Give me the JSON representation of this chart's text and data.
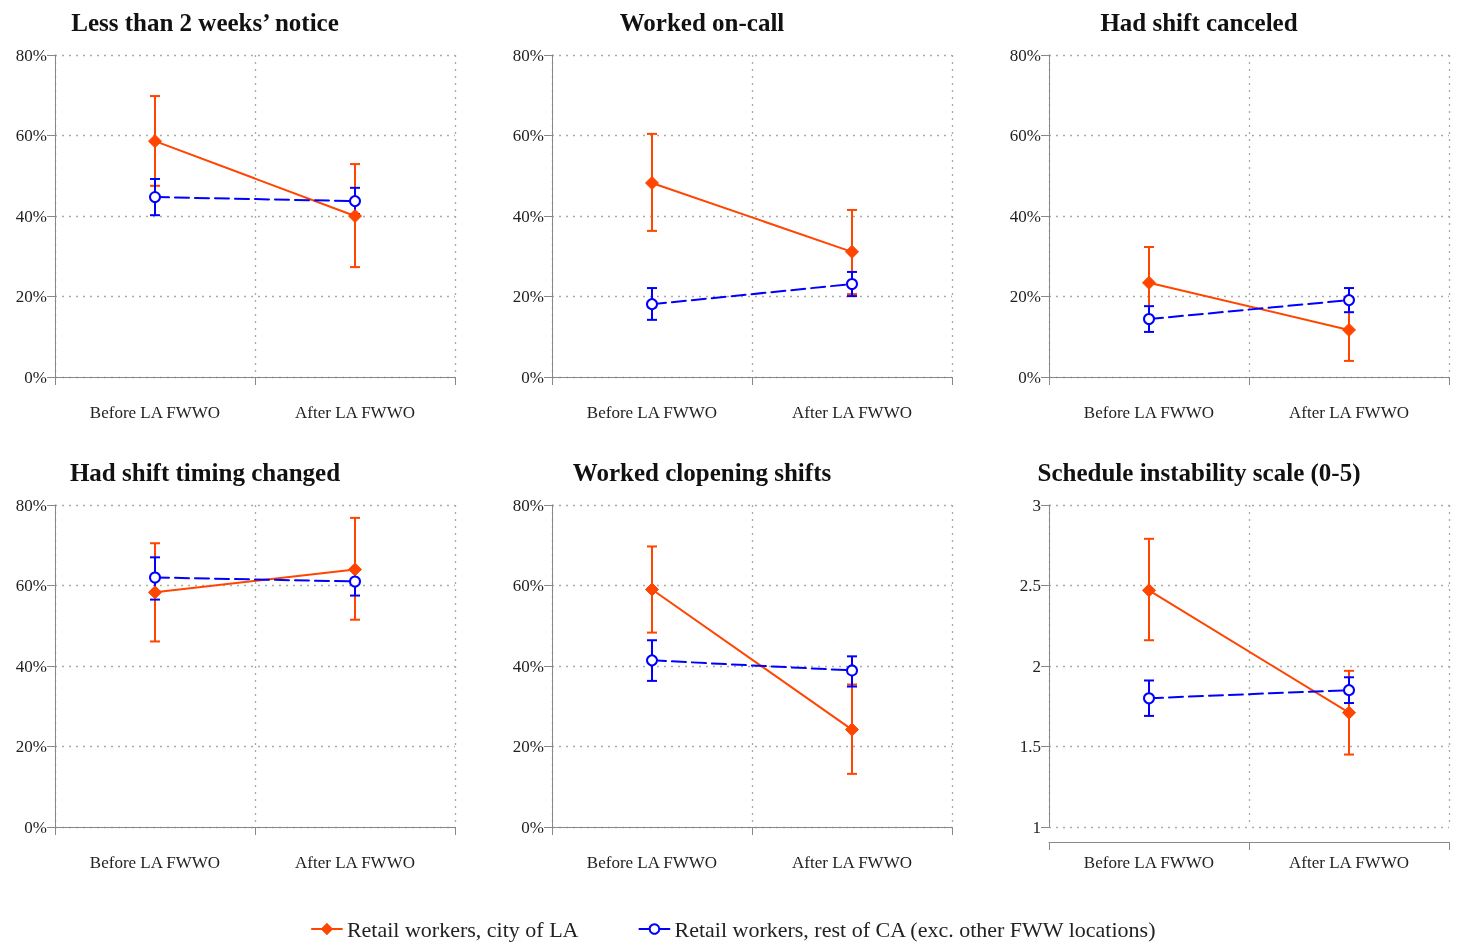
{
  "chart_data": [
    {
      "type": "line",
      "title": "Less than 2 weeks’ notice",
      "categories": [
        "Before LA FWWO",
        "After LA FWWO"
      ],
      "ylim": [
        0,
        80
      ],
      "yticks": [
        {
          "value": 0,
          "label": "0%"
        },
        {
          "value": 20,
          "label": "20%"
        },
        {
          "value": 40,
          "label": "40%"
        },
        {
          "value": 60,
          "label": "60%"
        },
        {
          "value": 80,
          "label": "80%"
        }
      ],
      "grid": true,
      "legend": "bottom",
      "series": [
        {
          "name": "Retail workers, city of LA",
          "color": "#ff4500",
          "marker": "diamond",
          "line_style": "solid",
          "values": [
            58.6,
            40
          ],
          "errors": [
            [
              47.5,
              69.8
            ],
            [
              27.3,
              52.9
            ]
          ]
        },
        {
          "name": "Retail workers, rest of CA (exc. other FWW locations)",
          "color": "#0000ff",
          "marker": "circle",
          "line_style": "dashed",
          "values": [
            44.7,
            43.7
          ],
          "errors": [
            [
              40.2,
              49.2
            ],
            [
              40.5,
              47
            ]
          ]
        }
      ]
    },
    {
      "type": "line",
      "title": "Worked on-call",
      "categories": [
        "Before LA FWWO",
        "After LA FWWO"
      ],
      "ylim": [
        0,
        80
      ],
      "yticks": [
        {
          "value": 0,
          "label": "0%"
        },
        {
          "value": 20,
          "label": "20%"
        },
        {
          "value": 40,
          "label": "40%"
        },
        {
          "value": 60,
          "label": "60%"
        },
        {
          "value": 80,
          "label": "80%"
        }
      ],
      "grid": true,
      "legend": "bottom",
      "series": [
        {
          "name": "Retail workers, city of LA",
          "color": "#ff4500",
          "marker": "diamond",
          "line_style": "solid",
          "values": [
            48.2,
            31.1
          ],
          "errors": [
            [
              36.3,
              60.4
            ],
            [
              20.6,
              41.5
            ]
          ]
        },
        {
          "name": "Retail workers, rest of CA (exc. other FWW locations)",
          "color": "#0000ff",
          "marker": "circle",
          "line_style": "dashed",
          "values": [
            18.1,
            23.1
          ],
          "errors": [
            [
              14.2,
              22.1
            ],
            [
              20.1,
              26.1
            ]
          ]
        }
      ]
    },
    {
      "type": "line",
      "title": "Had shift canceled",
      "categories": [
        "Before LA FWWO",
        "After LA FWWO"
      ],
      "ylim": [
        0,
        80
      ],
      "yticks": [
        {
          "value": 0,
          "label": "0%"
        },
        {
          "value": 20,
          "label": "20%"
        },
        {
          "value": 40,
          "label": "40%"
        },
        {
          "value": 60,
          "label": "60%"
        },
        {
          "value": 80,
          "label": "80%"
        }
      ],
      "grid": true,
      "legend": "bottom",
      "series": [
        {
          "name": "Retail workers, city of LA",
          "color": "#ff4500",
          "marker": "diamond",
          "line_style": "solid",
          "values": [
            23.4,
            11.7
          ],
          "errors": [
            [
              14.5,
              32.3
            ],
            [
              4,
              19.9
            ]
          ]
        },
        {
          "name": "Retail workers, rest of CA (exc. other FWW locations)",
          "color": "#0000ff",
          "marker": "circle",
          "line_style": "dashed",
          "values": [
            14.4,
            19.1
          ],
          "errors": [
            [
              11.2,
              17.6
            ],
            [
              16.1,
              22.1
            ]
          ]
        }
      ]
    },
    {
      "type": "line",
      "title": "Had shift timing changed",
      "categories": [
        "Before LA FWWO",
        "After LA FWWO"
      ],
      "ylim": [
        0,
        80
      ],
      "yticks": [
        {
          "value": 0,
          "label": "0%"
        },
        {
          "value": 20,
          "label": "20%"
        },
        {
          "value": 40,
          "label": "40%"
        },
        {
          "value": 60,
          "label": "60%"
        },
        {
          "value": 80,
          "label": "80%"
        }
      ],
      "grid": true,
      "legend": "bottom",
      "series": [
        {
          "name": "Retail workers, city of LA",
          "color": "#ff4500",
          "marker": "diamond",
          "line_style": "solid",
          "values": [
            58.3,
            64
          ],
          "errors": [
            [
              46.1,
              70.5
            ],
            [
              51.5,
              76.8
            ]
          ]
        },
        {
          "name": "Retail workers, rest of CA (exc. other FWW locations)",
          "color": "#0000ff",
          "marker": "circle",
          "line_style": "dashed",
          "values": [
            62,
            61
          ],
          "errors": [
            [
              56.5,
              67
            ],
            [
              57.5,
              61
            ]
          ]
        }
      ]
    },
    {
      "type": "line",
      "title": "Worked clopening shifts",
      "categories": [
        "Before LA FWWO",
        "After LA FWWO"
      ],
      "ylim": [
        0,
        80
      ],
      "yticks": [
        {
          "value": 0,
          "label": "0%"
        },
        {
          "value": 20,
          "label": "20%"
        },
        {
          "value": 40,
          "label": "40%"
        },
        {
          "value": 60,
          "label": "60%"
        },
        {
          "value": 80,
          "label": "80%"
        }
      ],
      "grid": true,
      "legend": "bottom",
      "series": [
        {
          "name": "Retail workers, city of LA",
          "color": "#ff4500",
          "marker": "diamond",
          "line_style": "solid",
          "values": [
            59,
            24.2
          ],
          "errors": [
            [
              48.3,
              69.7
            ],
            [
              13.2,
              35.4
            ]
          ]
        },
        {
          "name": "Retail workers, rest of CA (exc. other FWW locations)",
          "color": "#0000ff",
          "marker": "circle",
          "line_style": "dashed",
          "values": [
            41.4,
            38.9
          ],
          "errors": [
            [
              36.3,
              46.4
            ],
            [
              34.9,
              42.4
            ]
          ]
        }
      ]
    },
    {
      "type": "line",
      "title": "Schedule instability scale (0-5)",
      "categories": [
        "Before LA FWWO",
        "After LA FWWO"
      ],
      "ylim": [
        1,
        3
      ],
      "yticks": [
        1,
        1.5,
        2,
        2.5,
        3
      ],
      "grid": true,
      "legend": "bottom",
      "series": [
        {
          "name": "Retail workers, city of LA",
          "color": "#ff4500",
          "marker": "diamond",
          "line_style": "solid",
          "values": [
            2.47,
            1.71
          ],
          "errors": [
            [
              2.16,
              2.79
            ],
            [
              1.45,
              1.97
            ]
          ]
        },
        {
          "name": "Retail workers, rest of CA (exc. other FWW locations)",
          "color": "#0000ff",
          "marker": "circle",
          "line_style": "dashed",
          "values": [
            1.8,
            1.85
          ],
          "errors": [
            [
              1.69,
              1.91
            ],
            [
              1.77,
              1.93
            ]
          ]
        }
      ]
    }
  ]
}
